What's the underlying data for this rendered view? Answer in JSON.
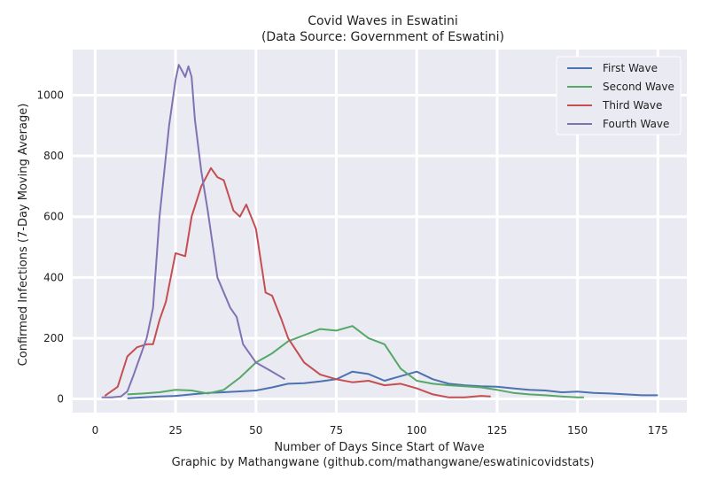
{
  "chart_data": {
    "type": "line",
    "title": "Covid Waves in Eswatini",
    "subtitle": "(Data Source: Government of Eswatini)",
    "xlabel": "Number of Days Since Start of Wave",
    "ylabel": "Confirmed Infections (7-Day Moving Average)",
    "caption": "Graphic by Mathangwane (github.com/mathangwane/eswatinicovidstats)",
    "xlim": [
      -7,
      184
    ],
    "ylim": [
      -45,
      1150
    ],
    "xticks": [
      0,
      25,
      50,
      75,
      100,
      125,
      150,
      175
    ],
    "yticks": [
      0,
      200,
      400,
      600,
      800,
      1000
    ],
    "grid": true,
    "legend": "top-right",
    "series": [
      {
        "name": "First Wave",
        "color": "#4c72b0",
        "x": [
          10,
          15,
          20,
          25,
          30,
          35,
          40,
          45,
          50,
          55,
          60,
          65,
          70,
          75,
          78,
          80,
          85,
          90,
          95,
          100,
          105,
          110,
          115,
          120,
          125,
          130,
          135,
          140,
          145,
          150,
          155,
          160,
          165,
          170,
          175
        ],
        "y": [
          2,
          5,
          8,
          10,
          15,
          20,
          22,
          25,
          28,
          38,
          50,
          52,
          58,
          65,
          80,
          90,
          82,
          60,
          75,
          90,
          65,
          50,
          45,
          42,
          40,
          35,
          30,
          28,
          22,
          24,
          20,
          18,
          15,
          12,
          12
        ]
      },
      {
        "name": "Second Wave",
        "color": "#55a868",
        "x": [
          10,
          15,
          20,
          25,
          30,
          35,
          40,
          45,
          50,
          55,
          60,
          65,
          70,
          75,
          80,
          85,
          90,
          95,
          100,
          105,
          110,
          115,
          120,
          125,
          130,
          135,
          140,
          145,
          150,
          152
        ],
        "y": [
          15,
          18,
          22,
          30,
          28,
          18,
          30,
          70,
          120,
          150,
          190,
          210,
          230,
          225,
          240,
          200,
          180,
          100,
          60,
          50,
          45,
          42,
          38,
          30,
          20,
          15,
          12,
          8,
          5,
          5
        ]
      },
      {
        "name": "Third Wave",
        "color": "#c44e52",
        "x": [
          3,
          7,
          10,
          13,
          16,
          18,
          20,
          22,
          25,
          28,
          30,
          33,
          35,
          36,
          38,
          40,
          43,
          45,
          47,
          50,
          53,
          55,
          58,
          60,
          65,
          70,
          75,
          80,
          85,
          90,
          95,
          100,
          105,
          110,
          115,
          120,
          123
        ],
        "y": [
          10,
          40,
          140,
          170,
          180,
          180,
          260,
          320,
          480,
          470,
          600,
          700,
          740,
          760,
          730,
          720,
          620,
          600,
          640,
          560,
          350,
          340,
          260,
          200,
          120,
          80,
          65,
          55,
          60,
          45,
          50,
          35,
          15,
          5,
          5,
          10,
          8
        ]
      },
      {
        "name": "Fourth Wave",
        "color": "#8172b3",
        "x": [
          2,
          5,
          8,
          10,
          12,
          14,
          16,
          18,
          20,
          21,
          23,
          25,
          26,
          27,
          28,
          29,
          30,
          31,
          33,
          35,
          38,
          42,
          44,
          46,
          50,
          55,
          59
        ],
        "y": [
          5,
          5,
          8,
          25,
          80,
          140,
          200,
          300,
          600,
          700,
          900,
          1050,
          1100,
          1080,
          1060,
          1095,
          1060,
          920,
          750,
          620,
          400,
          300,
          270,
          180,
          120,
          90,
          65
        ]
      }
    ]
  }
}
